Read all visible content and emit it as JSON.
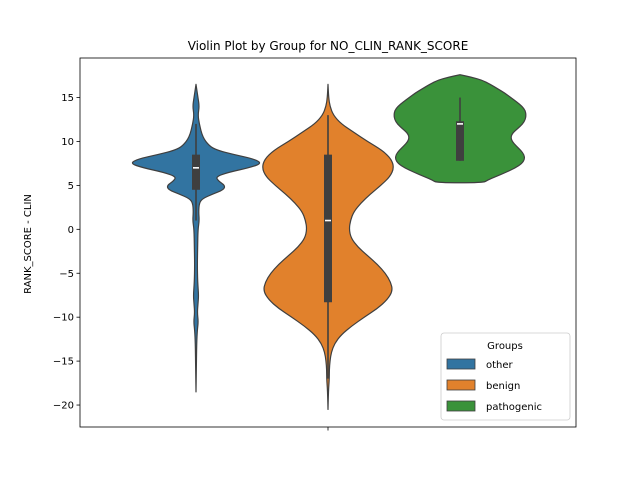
{
  "chart_data": {
    "type": "violin",
    "title": "Violin Plot by Group for NO_CLIN_RANK_SCORE",
    "xlabel": "",
    "ylabel": "RANK_SCORE - CLIN",
    "ylim": [
      -22.5,
      19.5
    ],
    "yticks": [
      15,
      10,
      5,
      0,
      -5,
      -10,
      -15,
      -20
    ],
    "xticks": [
      ""
    ],
    "grid": false,
    "legend": {
      "title": "Groups",
      "placement": "lower-right"
    },
    "series": [
      {
        "name": "other",
        "color": "#3274a1",
        "range": [
          -18.5,
          16.5
        ],
        "quartiles": [
          4.5,
          7.0,
          8.5
        ],
        "whiskers": [
          1.0,
          12.0
        ],
        "profile": [
          [
            16.5,
            0.0
          ],
          [
            15.0,
            0.03
          ],
          [
            14.0,
            0.05
          ],
          [
            13.0,
            0.03
          ],
          [
            12.0,
            0.05
          ],
          [
            10.5,
            0.1
          ],
          [
            9.5,
            0.2
          ],
          [
            9.0,
            0.32
          ],
          [
            8.5,
            0.58
          ],
          [
            8.0,
            0.88
          ],
          [
            7.5,
            1.0
          ],
          [
            7.0,
            0.8
          ],
          [
            6.5,
            0.5
          ],
          [
            6.0,
            0.3
          ],
          [
            5.5,
            0.34
          ],
          [
            5.0,
            0.44
          ],
          [
            4.5,
            0.42
          ],
          [
            4.0,
            0.25
          ],
          [
            3.5,
            0.1
          ],
          [
            3.0,
            0.05
          ],
          [
            2.0,
            0.04
          ],
          [
            1.0,
            0.05
          ],
          [
            0.0,
            0.03
          ],
          [
            -2.0,
            0.025
          ],
          [
            -4.0,
            0.02
          ],
          [
            -6.0,
            0.025
          ],
          [
            -7.5,
            0.04
          ],
          [
            -8.5,
            0.03
          ],
          [
            -9.5,
            0.02
          ],
          [
            -10.5,
            0.035
          ],
          [
            -11.5,
            0.02
          ],
          [
            -13.0,
            0.01
          ],
          [
            -16.0,
            0.005
          ],
          [
            -18.5,
            0.0
          ]
        ]
      },
      {
        "name": "benign",
        "color": "#e1812c",
        "range": [
          -20.5,
          16.5
        ],
        "quartiles": [
          -8.3,
          1.0,
          8.5
        ],
        "whiskers": [
          -17.0,
          13.0
        ],
        "profile": [
          [
            16.5,
            0.0
          ],
          [
            15.0,
            0.01
          ],
          [
            14.0,
            0.03
          ],
          [
            13.0,
            0.08
          ],
          [
            12.0,
            0.2
          ],
          [
            11.0,
            0.4
          ],
          [
            10.0,
            0.6
          ],
          [
            9.0,
            0.82
          ],
          [
            8.0,
            0.96
          ],
          [
            7.0,
            1.0
          ],
          [
            6.0,
            0.94
          ],
          [
            5.0,
            0.8
          ],
          [
            4.0,
            0.64
          ],
          [
            3.0,
            0.5
          ],
          [
            2.0,
            0.39
          ],
          [
            1.0,
            0.34
          ],
          [
            0.0,
            0.32
          ],
          [
            -1.0,
            0.35
          ],
          [
            -2.0,
            0.45
          ],
          [
            -3.0,
            0.6
          ],
          [
            -4.0,
            0.75
          ],
          [
            -5.0,
            0.87
          ],
          [
            -6.0,
            0.95
          ],
          [
            -7.0,
            0.98
          ],
          [
            -8.0,
            0.9
          ],
          [
            -9.0,
            0.75
          ],
          [
            -10.0,
            0.55
          ],
          [
            -11.0,
            0.36
          ],
          [
            -12.0,
            0.2
          ],
          [
            -13.0,
            0.1
          ],
          [
            -14.0,
            0.05
          ],
          [
            -15.0,
            0.03
          ],
          [
            -16.0,
            0.02
          ],
          [
            -17.0,
            0.02
          ],
          [
            -18.0,
            0.01
          ],
          [
            -19.0,
            0.005
          ],
          [
            -20.5,
            0.0
          ]
        ]
      },
      {
        "name": "pathogenic",
        "color": "#3a923a",
        "range": [
          5.3,
          17.6
        ],
        "quartiles": [
          7.8,
          12.0,
          12.3
        ],
        "whiskers": [
          7.8,
          15.0
        ],
        "profile": [
          [
            17.6,
            0.0
          ],
          [
            17.3,
            0.18
          ],
          [
            17.0,
            0.33
          ],
          [
            16.5,
            0.46
          ],
          [
            16.0,
            0.57
          ],
          [
            15.5,
            0.68
          ],
          [
            15.0,
            0.77
          ],
          [
            14.5,
            0.86
          ],
          [
            14.0,
            0.94
          ],
          [
            13.5,
            0.99
          ],
          [
            13.0,
            1.0
          ],
          [
            12.5,
            0.99
          ],
          [
            12.0,
            0.95
          ],
          [
            11.5,
            0.88
          ],
          [
            11.0,
            0.8
          ],
          [
            10.5,
            0.77
          ],
          [
            10.0,
            0.79
          ],
          [
            9.5,
            0.85
          ],
          [
            9.0,
            0.92
          ],
          [
            8.5,
            0.97
          ],
          [
            8.0,
            0.98
          ],
          [
            7.5,
            0.94
          ],
          [
            7.0,
            0.84
          ],
          [
            6.5,
            0.7
          ],
          [
            6.0,
            0.54
          ],
          [
            5.6,
            0.42
          ],
          [
            5.3,
            0.35
          ]
        ]
      }
    ]
  }
}
